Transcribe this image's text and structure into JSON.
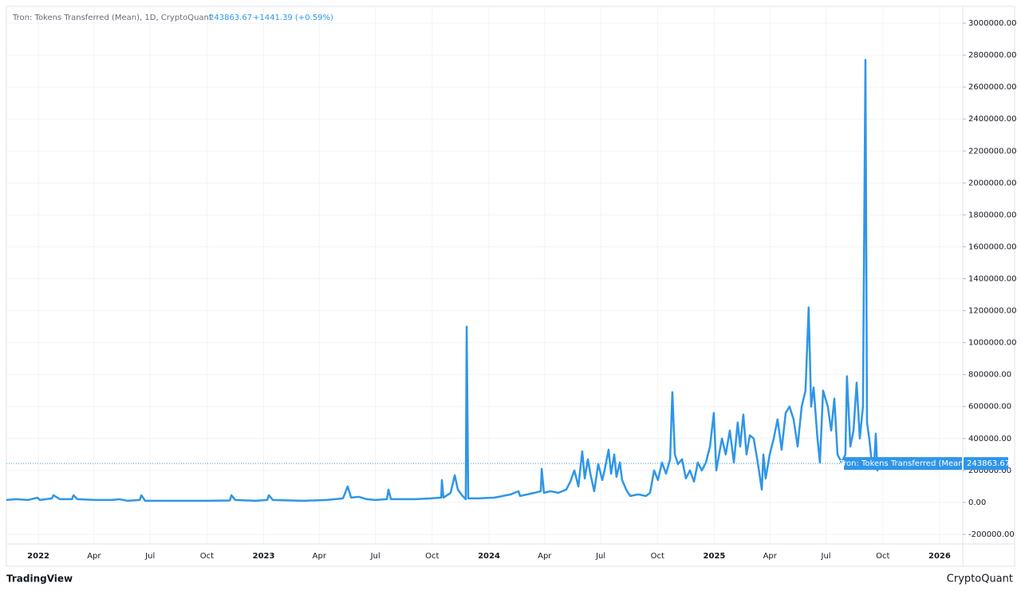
{
  "chart_data": {
    "type": "line",
    "title": "Tron: Tokens Transferred (Mean), 1D, CryptoQuant",
    "last_value": 243863.67,
    "change": "+1441.39 (+0.59%)",
    "x": [
      2021.858,
      2021.901,
      2021.954,
      2021.996,
      2022.007,
      2022.06,
      2022.067,
      2022.096,
      2022.149,
      2022.156,
      2022.173,
      2022.255,
      2022.326,
      2022.361,
      2022.396,
      2022.45,
      2022.457,
      2022.474,
      2022.609,
      2022.75,
      2022.85,
      2022.857,
      2022.874,
      2022.963,
      2023.016,
      2023.023,
      2023.041,
      2023.175,
      2023.281,
      2023.352,
      2023.373,
      2023.388,
      2023.423,
      2023.458,
      2023.494,
      2023.547,
      2023.554,
      2023.565,
      2023.671,
      2023.742,
      2023.788,
      2023.791,
      2023.798,
      2023.83,
      2023.848,
      2023.862,
      2023.883,
      2023.897,
      2023.901,
      2023.908,
      2023.954,
      2024.025,
      2024.096,
      2024.131,
      2024.138,
      2024.202,
      2024.23,
      2024.234,
      2024.244,
      2024.273,
      2024.308,
      2024.343,
      2024.361,
      2024.379,
      2024.397,
      2024.414,
      2024.425,
      2024.439,
      2024.45,
      2024.467,
      2024.485,
      2024.503,
      2024.513,
      2024.531,
      2024.542,
      2024.556,
      2024.566,
      2024.581,
      2024.591,
      2024.609,
      2024.627,
      2024.662,
      2024.697,
      2024.715,
      2024.733,
      2024.75,
      2024.768,
      2024.786,
      2024.804,
      2024.814,
      2024.825,
      2024.839,
      2024.857,
      2024.874,
      2024.892,
      2024.91,
      2024.927,
      2024.945,
      2024.963,
      2024.981,
      2024.998,
      2025.009,
      2025.034,
      2025.051,
      2025.069,
      2025.087,
      2025.104,
      2025.115,
      2025.129,
      2025.143,
      2025.158,
      2025.175,
      2025.193,
      2025.211,
      2025.218,
      2025.228,
      2025.246,
      2025.264,
      2025.281,
      2025.299,
      2025.317,
      2025.334,
      2025.352,
      2025.37,
      2025.388,
      2025.405,
      2025.419,
      2025.43,
      2025.441,
      2025.458,
      2025.469,
      2025.483,
      2025.504,
      2025.519,
      2025.533,
      2025.547,
      2025.565,
      2025.582,
      2025.589,
      2025.604,
      2025.618,
      2025.632,
      2025.646,
      2025.66,
      2025.671,
      2025.678,
      2025.688,
      2025.699,
      2025.71,
      2025.717,
      2025.724,
      2025.731
    ],
    "series": [
      {
        "name": "Tron: Tokens Transferred (Mean)",
        "color": "#2f96e8",
        "values": [
          15000,
          20000,
          15000,
          30000,
          15000,
          25000,
          45000,
          20000,
          20000,
          45000,
          20000,
          15000,
          15000,
          20000,
          10000,
          15000,
          45000,
          10000,
          10000,
          10000,
          12000,
          45000,
          15000,
          10000,
          15000,
          45000,
          15000,
          10000,
          15000,
          25000,
          100000,
          30000,
          35000,
          20000,
          15000,
          20000,
          80000,
          20000,
          20000,
          25000,
          30000,
          140000,
          30000,
          60000,
          170000,
          80000,
          40000,
          20000,
          1100000,
          25000,
          25000,
          30000,
          50000,
          70000,
          40000,
          60000,
          70000,
          210000,
          60000,
          70000,
          60000,
          80000,
          130000,
          200000,
          100000,
          320000,
          150000,
          270000,
          180000,
          70000,
          240000,
          140000,
          200000,
          330000,
          180000,
          300000,
          160000,
          250000,
          140000,
          80000,
          40000,
          50000,
          40000,
          60000,
          200000,
          140000,
          250000,
          180000,
          270000,
          690000,
          300000,
          240000,
          270000,
          150000,
          200000,
          130000,
          250000,
          200000,
          250000,
          350000,
          560000,
          200000,
          400000,
          300000,
          450000,
          250000,
          500000,
          350000,
          550000,
          300000,
          420000,
          400000,
          250000,
          80000,
          300000,
          150000,
          300000,
          400000,
          520000,
          330000,
          560000,
          600000,
          520000,
          350000,
          600000,
          700000,
          1220000,
          600000,
          720000,
          400000,
          250000,
          700000,
          600000,
          450000,
          650000,
          300000,
          250000,
          300000,
          790000,
          350000,
          450000,
          750000,
          400000,
          600000,
          2770000,
          500000,
          400000,
          250000,
          250000,
          430000,
          200000,
          243863.67
        ]
      }
    ],
    "xlim": [
      2021.858,
      2026.103
    ],
    "ylim": [
      -260000,
      3105000
    ],
    "xticks": [
      2022,
      {
        "value": 2022.247,
        "label": "Apr"
      },
      {
        "value": 2022.496,
        "label": "Jul"
      },
      {
        "value": 2022.748,
        "label": "Oct"
      },
      2023,
      {
        "value": 2023.247,
        "label": "Apr"
      },
      {
        "value": 2023.496,
        "label": "Jul"
      },
      {
        "value": 2023.748,
        "label": "Oct"
      },
      2024,
      {
        "value": 2024.247,
        "label": "Apr"
      },
      {
        "value": 2024.496,
        "label": "Jul"
      },
      {
        "value": 2024.748,
        "label": "Oct"
      },
      2025,
      {
        "value": 2025.247,
        "label": "Apr"
      },
      {
        "value": 2025.496,
        "label": "Jul"
      },
      {
        "value": 2025.748,
        "label": "Oct"
      },
      2026
    ],
    "yticks": [
      {
        "value": -200000,
        "label": "-200000.00"
      },
      {
        "value": 0,
        "label": "0.00"
      },
      {
        "value": 200000,
        "label": "200000.00"
      },
      {
        "value": 400000,
        "label": "400000.00"
      },
      {
        "value": 600000,
        "label": "600000.00"
      },
      {
        "value": 800000,
        "label": "800000.00"
      },
      {
        "value": 1000000,
        "label": "1000000.00"
      },
      {
        "value": 1200000,
        "label": "1200000.00"
      },
      {
        "value": 1400000,
        "label": "1400000.00"
      },
      {
        "value": 1600000,
        "label": "1600000.00"
      },
      {
        "value": 1800000,
        "label": "1800000.00"
      },
      {
        "value": 2000000,
        "label": "2000000.00"
      },
      {
        "value": 2200000,
        "label": "2200000.00"
      },
      {
        "value": 2400000,
        "label": "2400000.00"
      },
      {
        "value": 2600000,
        "label": "2600000.00"
      },
      {
        "value": 2800000,
        "label": "2800000.00"
      },
      {
        "value": 3000000,
        "label": "3000000.00"
      }
    ],
    "grid": true
  },
  "footer": {
    "left": "TradingView",
    "right": "CryptoQuant"
  }
}
